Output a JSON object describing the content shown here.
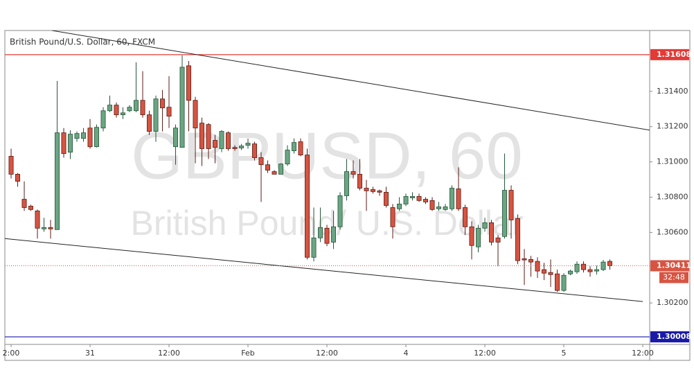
{
  "chart_data": {
    "type": "candlestick",
    "title": "British Pound/U.S. Dollar, 60, FXCM",
    "watermark": [
      "GBPUSD, 60",
      "British Pound/ U.S. Dollar"
    ],
    "x": [
      0,
      1,
      2,
      3,
      4,
      5,
      6,
      7,
      8,
      9,
      10,
      11,
      12,
      13,
      14,
      15,
      16,
      17,
      18,
      19,
      20,
      21,
      22,
      23,
      24,
      25,
      26,
      27,
      28,
      29,
      30,
      31,
      32,
      33,
      34,
      35,
      36,
      37,
      38,
      39,
      40,
      41,
      42,
      43,
      44,
      45,
      46,
      47,
      48,
      49,
      50,
      51,
      52,
      53,
      54,
      55,
      56,
      57,
      58,
      59,
      60,
      61,
      62,
      63,
      64,
      65,
      66,
      67,
      68,
      69,
      70,
      71,
      72,
      73,
      74,
      75,
      76,
      77,
      78,
      79,
      80,
      81,
      82,
      83,
      84,
      85,
      86,
      87,
      88,
      89,
      90,
      91
    ],
    "open": [
      1.31032,
      1.3093,
      1.30788,
      1.30749,
      1.30722,
      1.3062,
      1.30628,
      1.30616,
      1.31165,
      1.31055,
      1.31133,
      1.31133,
      1.31192,
      1.31086,
      1.31192,
      1.3129,
      1.31322,
      1.31267,
      1.3129,
      1.3129,
      1.31349,
      1.31267,
      1.31173,
      1.31357,
      1.3131,
      1.31086,
      1.31082,
      1.31545,
      1.31349,
      1.3122,
      1.31212,
      1.31122,
      1.31075,
      1.31165,
      1.31082,
      1.31079,
      1.31094,
      1.31102,
      1.31024,
      1.30984,
      1.30945,
      1.3093,
      1.30988,
      1.31063,
      1.31114,
      1.31039,
      1.30459,
      1.30569,
      1.30624,
      1.30545,
      1.30632,
      1.30808,
      1.30945,
      1.3093,
      1.30851,
      1.30843,
      1.30836,
      1.30828,
      1.30741,
      1.30734,
      1.30761,
      1.30796,
      1.30804,
      1.30788,
      1.30781,
      1.30734,
      1.3073,
      1.30734,
      1.30847,
      1.30741,
      1.30632,
      1.30518,
      1.30624,
      1.30655,
      1.30569,
      1.30577,
      1.30839,
      1.30679,
      1.30451,
      1.30447,
      1.30436,
      1.30389,
      1.30373,
      1.30365,
      1.30271,
      1.30365,
      1.30377,
      1.3042,
      1.30389,
      1.30381,
      1.30389,
      1.30436
    ],
    "high": [
      1.31075,
      1.30937,
      1.3089,
      1.30757,
      1.3073,
      1.30683,
      1.30671,
      1.31459,
      1.31192,
      1.3118,
      1.31173,
      1.31192,
      1.31243,
      1.31212,
      1.3131,
      1.31376,
      1.31337,
      1.3131,
      1.31322,
      1.31565,
      1.31514,
      1.3129,
      1.31376,
      1.31408,
      1.31486,
      1.31212,
      1.31604,
      1.31572,
      1.31369,
      1.31251,
      1.3122,
      1.31153,
      1.3118,
      1.31173,
      1.31094,
      1.31102,
      1.31133,
      1.31114,
      1.31055,
      1.31008,
      1.30953,
      1.30992,
      1.31094,
      1.31133,
      1.31133,
      1.31075,
      1.30741,
      1.30741,
      1.30643,
      1.30722,
      1.30828,
      1.31016,
      1.31008,
      1.31016,
      1.30898,
      1.30859,
      1.30843,
      1.30859,
      1.30761,
      1.308,
      1.3082,
      1.30828,
      1.3082,
      1.308,
      1.308,
      1.30773,
      1.30761,
      1.30867,
      1.30969,
      1.30757,
      1.30663,
      1.30643,
      1.30683,
      1.30671,
      1.30585,
      1.31047,
      1.30867,
      1.30702,
      1.30506,
      1.30467,
      1.30459,
      1.30428,
      1.30447,
      1.30389,
      1.30369,
      1.30389,
      1.30436,
      1.30436,
      1.30408,
      1.30412,
      1.30444,
      1.30447
    ],
    "low": [
      1.30906,
      1.30859,
      1.30722,
      1.30722,
      1.30565,
      1.30604,
      1.30565,
      1.30616,
      1.31024,
      1.31016,
      1.31114,
      1.31114,
      1.31075,
      1.31082,
      1.31173,
      1.31282,
      1.31251,
      1.31243,
      1.31282,
      1.31282,
      1.31251,
      1.31153,
      1.31114,
      1.31173,
      1.31192,
      1.30984,
      1.31082,
      1.31173,
      1.30992,
      1.30977,
      1.31016,
      1.30992,
      1.31055,
      1.31063,
      1.31063,
      1.31067,
      1.31075,
      1.31008,
      1.30773,
      1.30937,
      1.3093,
      1.3093,
      1.30977,
      1.31047,
      1.31032,
      1.30447,
      1.30436,
      1.30545,
      1.30522,
      1.30506,
      1.30616,
      1.30781,
      1.30906,
      1.30839,
      1.30722,
      1.3082,
      1.30808,
      1.30741,
      1.30565,
      1.30722,
      1.30749,
      1.30781,
      1.30773,
      1.30761,
      1.30722,
      1.30722,
      1.30722,
      1.30722,
      1.30722,
      1.30585,
      1.30447,
      1.30487,
      1.30604,
      1.30526,
      1.30408,
      1.30565,
      1.30565,
      1.3042,
      1.30302,
      1.30349,
      1.30342,
      1.3033,
      1.30291,
      1.30263,
      1.30263,
      1.30357,
      1.30365,
      1.30373,
      1.30349,
      1.30361,
      1.30381,
      1.30389
    ],
    "close": [
      1.3093,
      1.3089,
      1.30741,
      1.3073,
      1.30624,
      1.30628,
      1.3062,
      1.31165,
      1.31047,
      1.31157,
      1.31161,
      1.31165,
      1.31086,
      1.31196,
      1.3129,
      1.31322,
      1.31267,
      1.31278,
      1.3131,
      1.31349,
      1.31267,
      1.31173,
      1.31357,
      1.31306,
      1.31259,
      1.31192,
      1.31537,
      1.31349,
      1.31192,
      1.31075,
      1.31075,
      1.31082,
      1.31173,
      1.31075,
      1.31075,
      1.3109,
      1.31106,
      1.31024,
      1.30984,
      1.30953,
      1.3093,
      1.30988,
      1.31067,
      1.3111,
      1.31039,
      1.30459,
      1.30569,
      1.30628,
      1.30538,
      1.30632,
      1.30808,
      1.30945,
      1.3093,
      1.30851,
      1.30836,
      1.30832,
      1.30828,
      1.30753,
      1.30632,
      1.30761,
      1.30804,
      1.30804,
      1.30781,
      1.30773,
      1.3073,
      1.30745,
      1.30745,
      1.30851,
      1.30734,
      1.30632,
      1.30526,
      1.30624,
      1.30655,
      1.30545,
      1.30545,
      1.30839,
      1.30671,
      1.3044,
      1.30444,
      1.30432,
      1.30381,
      1.30369,
      1.30361,
      1.30271,
      1.30357,
      1.30381,
      1.3042,
      1.30389,
      1.30377,
      1.30389,
      1.30432,
      1.30411
    ],
    "up_color": "#6ba583",
    "down_color": "#d75442",
    "xlim": [
      -0.95,
      97.05
    ],
    "xticks": [
      {
        "value": 0,
        "label": "2:00"
      },
      {
        "value": 12,
        "label": "31"
      },
      {
        "value": 24,
        "label": "12:00"
      },
      {
        "value": 36,
        "label": "Feb"
      },
      {
        "value": 48,
        "label": "12:00"
      },
      {
        "value": 60,
        "label": "4"
      },
      {
        "value": 72,
        "label": "12:00"
      },
      {
        "value": 84,
        "label": "5"
      },
      {
        "value": 96,
        "label": "12:00"
      }
    ],
    "ylim": [
      1.29965,
      1.31745
    ],
    "yticks": [
      {
        "value": 1.302,
        "label": "1.30200"
      },
      {
        "value": 1.306,
        "label": "1.30600"
      },
      {
        "value": 1.308,
        "label": "1.30800"
      },
      {
        "value": 1.31,
        "label": "1.31000"
      },
      {
        "value": 1.312,
        "label": "1.31200"
      },
      {
        "value": 1.314,
        "label": "1.31400"
      }
    ],
    "grid": false,
    "levels": [
      {
        "value": 1.31608,
        "color": "#e53935"
      },
      {
        "value": 1.30008,
        "color": "#1a1aa8"
      }
    ],
    "trendlines": [
      {
        "x": [
          6.2,
          97.05
        ],
        "y": [
          1.31745,
          1.3118
        ]
      },
      {
        "x": [
          -0.95,
          96
        ],
        "y": [
          1.30565,
          1.30208
        ]
      }
    ],
    "last_price_color": "#d75442",
    "countdown": "32:48"
  }
}
